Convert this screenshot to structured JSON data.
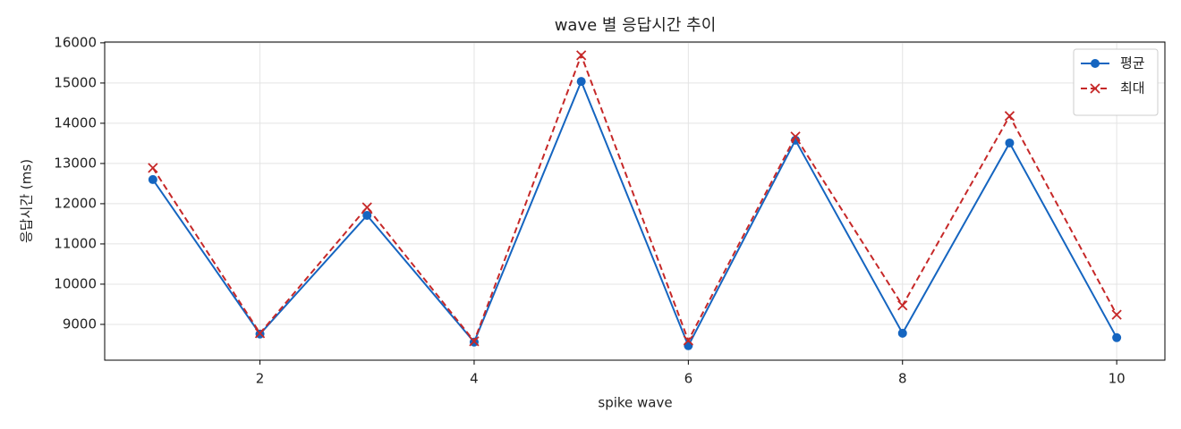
{
  "chart_data": {
    "type": "line",
    "title": "wave 별 응답시간 추이",
    "x_label": "spike wave",
    "y_label": "응답시간 (ms)",
    "x": [
      1,
      2,
      3,
      4,
      5,
      6,
      7,
      8,
      9,
      10
    ],
    "series": [
      {
        "name": "평균",
        "color": "#1565c0",
        "marker": "circle",
        "dash": "solid",
        "values": [
          12600,
          8760,
          11710,
          8560,
          15040,
          8470,
          13580,
          8780,
          13510,
          8670
        ]
      },
      {
        "name": "최대",
        "color": "#c62828",
        "marker": "x",
        "dash": "dashed",
        "values": [
          12890,
          8780,
          11910,
          8580,
          15690,
          8600,
          13670,
          9470,
          14180,
          9240
        ]
      }
    ],
    "xlim": [
      0.55,
      10.45
    ],
    "ylim": [
      8110,
      16020
    ],
    "xticks": [
      2,
      4,
      6,
      8,
      10
    ],
    "yticks": [
      9000,
      10000,
      11000,
      12000,
      13000,
      14000,
      15000,
      16000
    ],
    "grid": true,
    "legend": "upper right"
  }
}
